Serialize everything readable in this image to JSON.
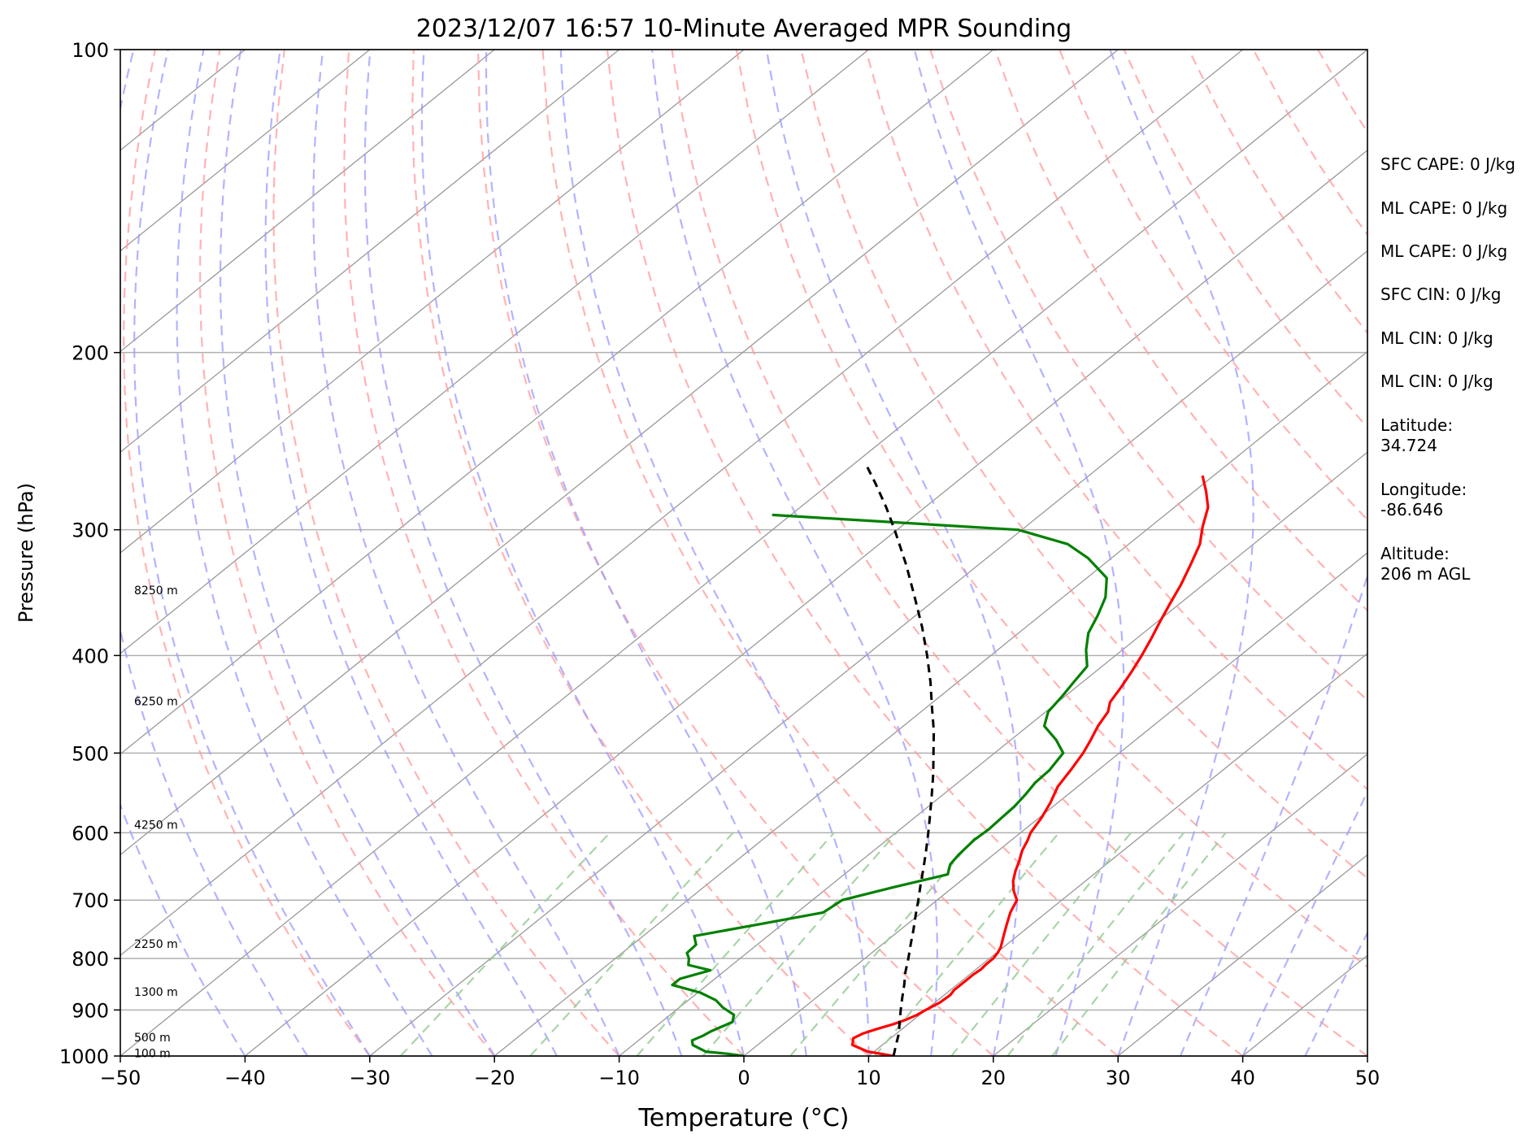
{
  "chart_data": {
    "type": "line",
    "title": "2023/12/07 16:57 10-Minute Averaged MPR Sounding",
    "xlabel": "Temperature (°C)",
    "ylabel": "Pressure (hPa)",
    "xlim": [
      -50,
      50
    ],
    "ylim": [
      1000,
      100
    ],
    "y_scale": "log",
    "skew": "skew-T",
    "xticks": [
      "−50",
      "−40",
      "−30",
      "−20",
      "−10",
      "0",
      "10",
      "20",
      "30",
      "40",
      "50"
    ],
    "xtick_values": [
      -50,
      -40,
      -30,
      -20,
      -10,
      0,
      10,
      20,
      30,
      40,
      50
    ],
    "yticks": [
      "100",
      "200",
      "300",
      "400",
      "500",
      "600",
      "700",
      "800",
      "900",
      "1000"
    ],
    "ytick_values": [
      100,
      200,
      300,
      400,
      500,
      600,
      700,
      800,
      900,
      1000
    ],
    "grid": true,
    "colors": {
      "temperature": "#ff0000",
      "dewpoint": "#008000",
      "parcel": "#000000",
      "dry_adiabats": "#ff9999",
      "moist_adiabats": "#9999ff",
      "mixing_ratio": "#99cc99",
      "isotherms": "#999999"
    },
    "series": [
      {
        "pressure": [
          1000,
          990,
          975,
          960,
          950,
          940,
          930,
          920,
          910,
          900,
          885,
          870,
          860,
          850,
          840,
          830,
          820,
          810,
          800,
          790,
          780,
          760,
          740,
          720,
          700,
          685,
          670,
          655,
          640,
          625,
          610,
          600,
          580,
          560,
          540,
          520,
          500,
          485,
          470,
          455,
          445,
          430,
          415,
          400,
          385,
          370,
          355,
          340,
          325,
          310,
          298,
          285,
          275,
          265
        ],
        "values": [
          12,
          9.5,
          7.6,
          7,
          7.3,
          8,
          8.8,
          9.4,
          9.8,
          10,
          10.4,
          10.5,
          10.3,
          10.3,
          10.3,
          10.3,
          10.4,
          10.3,
          10.3,
          10.1,
          9.8,
          8.9,
          8,
          7.1,
          6.4,
          5.2,
          4.2,
          3.4,
          2.7,
          1.9,
          1.3,
          0.8,
          0.2,
          -0.6,
          -1.6,
          -2.2,
          -2.9,
          -3.6,
          -4.4,
          -5,
          -5.8,
          -6.4,
          -7.1,
          -7.9,
          -8.8,
          -9.8,
          -10.8,
          -11.8,
          -13,
          -14.3,
          -15.8,
          -17.3,
          -19,
          -20.9
        ]
      },
      {
        "pressure": [
          1000,
          995,
          990,
          975,
          965,
          955,
          945,
          935,
          925,
          910,
          895,
          880,
          865,
          850,
          838,
          822,
          812,
          800,
          790,
          775,
          760,
          740,
          720,
          700,
          680,
          660,
          645,
          630,
          610,
          595,
          580,
          565,
          550,
          535,
          520,
          500,
          485,
          470,
          455,
          440,
          425,
          410,
          395,
          380,
          365,
          350,
          335,
          320,
          310,
          300,
          290
        ],
        "values": [
          0,
          -1.5,
          -3.5,
          -5.2,
          -5.7,
          -5.3,
          -5.1,
          -4.7,
          -4.3,
          -4.9,
          -6.5,
          -7.8,
          -9.8,
          -12.8,
          -12.8,
          -11.2,
          -13.5,
          -14.1,
          -14.8,
          -14.9,
          -15.9,
          -11.9,
          -7.9,
          -7.6,
          -4.8,
          -1.7,
          -2.5,
          -2.8,
          -3,
          -2.9,
          -3,
          -3.1,
          -3.4,
          -3.8,
          -3.9,
          -4.5,
          -6.4,
          -8.7,
          -9.8,
          -10.2,
          -10.7,
          -11.2,
          -12.9,
          -14.4,
          -15.4,
          -16.6,
          -18.4,
          -21.9,
          -24.9,
          -30.3,
          -51.5
        ]
      },
      {
        "pressure": [
          1000,
          975,
          950,
          925,
          900,
          875,
          850,
          825,
          800,
          775,
          750,
          725,
          700,
          675,
          650,
          625,
          600,
          575,
          550,
          525,
          500,
          475,
          450,
          425,
          400,
          375,
          350,
          325,
          300,
          285,
          270,
          260
        ],
        "values": [
          12,
          11.1,
          10.2,
          9.1,
          8,
          6.9,
          5.8,
          4.6,
          3.5,
          2.3,
          1.1,
          -0.2,
          -1.5,
          -2.9,
          -4.3,
          -5.8,
          -7.4,
          -9.1,
          -10.9,
          -12.8,
          -14.9,
          -17.1,
          -19.6,
          -22.2,
          -25.1,
          -28.3,
          -31.9,
          -35.8,
          -40.2,
          -43.1,
          -46.3,
          -48.6
        ]
      }
    ],
    "height_labels": [
      "8250 m",
      "6250 m",
      "4250 m",
      "2250 m",
      "1300 m",
      "500 m",
      "100 m"
    ],
    "height_label_pressures": [
      345,
      445,
      590,
      775,
      865,
      960,
      995
    ],
    "annotations": [
      "SFC CAPE: 0 J/kg",
      "ML CAPE: 0 J/kg",
      "ML CAPE: 0 J/kg",
      "SFC CIN: 0 J/kg",
      "ML CIN: 0 J/kg",
      "ML CIN: 0 J/kg",
      "Latitude:\n34.724",
      "Longitude:\n-86.646",
      "Altitude:\n206 m AGL"
    ]
  }
}
